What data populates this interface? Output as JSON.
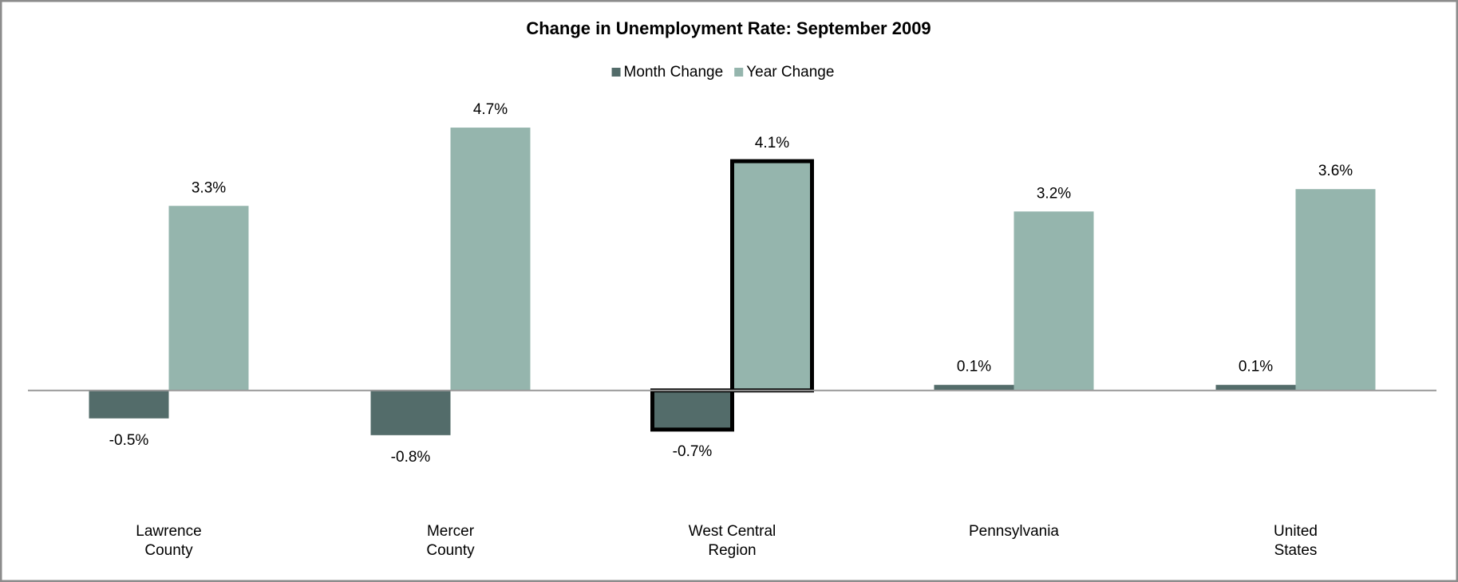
{
  "chart_data": {
    "type": "bar",
    "title": "Change in Unemployment Rate: September 2009",
    "categories": [
      [
        "Lawrence",
        "County"
      ],
      [
        "Mercer",
        "County"
      ],
      [
        "West Central",
        "Region"
      ],
      [
        "Pennsylvania"
      ],
      [
        "United",
        "States"
      ]
    ],
    "series": [
      {
        "name": "Month Change",
        "color": "#536c6a",
        "values": [
          -0.5,
          -0.8,
          -0.7,
          0.1,
          0.1
        ],
        "value_labels": [
          "-0.5%",
          "-0.8%",
          "-0.7%",
          "0.1%",
          "0.1%"
        ]
      },
      {
        "name": "Year Change",
        "color": "#95b5ad",
        "values": [
          3.3,
          4.7,
          4.1,
          3.2,
          3.6
        ],
        "value_labels": [
          "3.3%",
          "4.7%",
          "4.1%",
          "3.2%",
          "3.6%"
        ]
      }
    ],
    "ylim": [
      -2,
      5
    ],
    "highlight_index": 2,
    "legend": "top"
  }
}
